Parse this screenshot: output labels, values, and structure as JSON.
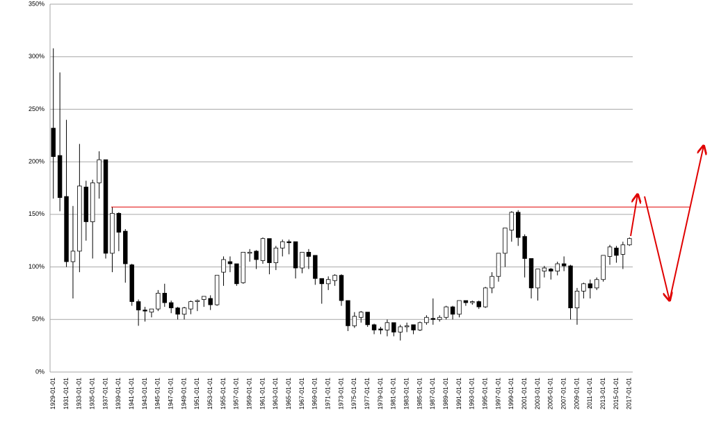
{
  "chart_data": {
    "type": "candlestick",
    "categories": [
      "1929-01-01",
      null,
      "1931-01-01",
      null,
      "1933-01-01",
      null,
      "1935-01-01",
      null,
      "1937-01-01",
      null,
      "1939-01-01",
      null,
      "1941-01-01",
      null,
      "1943-01-01",
      null,
      "1945-01-01",
      null,
      "1947-01-01",
      null,
      "1949-01-01",
      null,
      "1951-01-01",
      null,
      "1953-01-01",
      null,
      "1955-01-01",
      null,
      "1957-01-01",
      null,
      "1959-01-01",
      null,
      "1961-01-01",
      null,
      "1963-01-01",
      null,
      "1965-01-01",
      null,
      "1967-01-01",
      null,
      "1969-01-01",
      null,
      "1971-01-01",
      null,
      "1973-01-01",
      null,
      "1975-01-01",
      null,
      "1977-01-01",
      null,
      "1979-01-01",
      null,
      "1981-01-01",
      null,
      "1983-01-01",
      null,
      "1985-01-01",
      null,
      "1987-01-01",
      null,
      "1989-01-01",
      null,
      "1991-01-01",
      null,
      "1993-01-01",
      null,
      "1995-01-01",
      null,
      "1997-01-01",
      null,
      "1999-01-01",
      null,
      "2001-01-01",
      null,
      "2003-01-01",
      null,
      "2005-01-01",
      null,
      "2007-01-01",
      null,
      "2009-01-01",
      null,
      "2011-01-01",
      null,
      "2013-01-01",
      null,
      "2015-01-01",
      null,
      "2017-01-01"
    ],
    "open": [
      232,
      206,
      167,
      105,
      115,
      176,
      143,
      180,
      202,
      113,
      151,
      134,
      102,
      67,
      59,
      57,
      60,
      75,
      66,
      61,
      55,
      60,
      67,
      69,
      70,
      64,
      95,
      105,
      103,
      85,
      113,
      115,
      106,
      127,
      104,
      118,
      124,
      124,
      99,
      114,
      111,
      89,
      84,
      87,
      92,
      68,
      44,
      52,
      57,
      45,
      41,
      40,
      47,
      38,
      43,
      45,
      40,
      47,
      51,
      50,
      52,
      62,
      55,
      68,
      66,
      67,
      62,
      80,
      91,
      113,
      135,
      152,
      129,
      108,
      80,
      96,
      98,
      96,
      103,
      101,
      61,
      77,
      84,
      80,
      88,
      110,
      118,
      112,
      121
    ],
    "high": [
      308,
      285,
      240,
      158,
      217,
      182,
      183,
      210,
      202,
      157,
      152,
      136,
      103,
      69,
      62,
      60,
      78,
      84,
      68,
      62,
      62,
      68,
      69,
      72,
      73,
      92,
      110,
      110,
      103,
      114,
      117,
      116,
      128,
      127,
      120,
      126,
      126,
      124,
      114,
      117,
      111,
      89,
      91,
      93,
      93,
      68,
      57,
      58,
      57,
      46,
      43,
      50,
      47,
      45,
      47,
      45,
      48,
      54,
      70,
      54,
      63,
      63,
      68,
      68,
      68,
      68,
      81,
      95,
      113,
      137,
      153,
      154,
      131,
      108,
      98,
      101,
      99,
      105,
      110,
      102,
      80,
      85,
      88,
      90,
      111,
      121,
      120,
      124,
      128
    ],
    "low": [
      165,
      153,
      100,
      70,
      95,
      125,
      108,
      165,
      108,
      95,
      115,
      85,
      63,
      44,
      48,
      52,
      58,
      62,
      56,
      50,
      50,
      55,
      58,
      62,
      59,
      63,
      82,
      95,
      82,
      84,
      105,
      98,
      103,
      93,
      97,
      110,
      112,
      89,
      94,
      98,
      83,
      65,
      78,
      82,
      63,
      39,
      42,
      47,
      43,
      36,
      36,
      34,
      34,
      30,
      38,
      36,
      39,
      45,
      45,
      48,
      50,
      50,
      52,
      63,
      64,
      60,
      61,
      75,
      86,
      100,
      124,
      120,
      90,
      70,
      68,
      90,
      88,
      92,
      96,
      50,
      45,
      70,
      70,
      78,
      86,
      102,
      104,
      98,
      120
    ],
    "close": [
      205,
      166,
      105,
      115,
      177,
      143,
      180,
      202,
      113,
      151,
      133,
      103,
      67,
      59,
      58,
      60,
      75,
      66,
      61,
      55,
      61,
      67,
      68,
      72,
      64,
      92,
      107,
      103,
      84,
      114,
      114,
      107,
      127,
      104,
      118,
      124,
      123,
      99,
      114,
      110,
      89,
      84,
      88,
      92,
      68,
      44,
      53,
      57,
      45,
      40,
      40,
      47,
      38,
      43,
      44,
      40,
      47,
      52,
      50,
      52,
      62,
      55,
      68,
      66,
      67,
      62,
      80,
      91,
      113,
      137,
      152,
      128,
      108,
      80,
      98,
      99,
      96,
      103,
      101,
      61,
      77,
      84,
      80,
      88,
      111,
      119,
      111,
      121,
      127
    ],
    "up_color": "#ffffff",
    "down_color": "#000000",
    "ylim": [
      0,
      350
    ],
    "yticks": [
      {
        "value": 0,
        "label": "0%"
      },
      {
        "value": 50,
        "label": "50%"
      },
      {
        "value": 100,
        "label": "100%"
      },
      {
        "value": 150,
        "label": "150%"
      },
      {
        "value": 200,
        "label": "200%"
      },
      {
        "value": 250,
        "label": "250%"
      },
      {
        "value": 300,
        "label": "300%"
      },
      {
        "value": 350,
        "label": "350%"
      }
    ],
    "grid": true,
    "reference_line": {
      "value": 157,
      "color": "#e00000"
    }
  }
}
